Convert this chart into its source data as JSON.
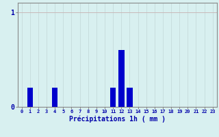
{
  "hours": [
    0,
    1,
    2,
    3,
    4,
    5,
    6,
    7,
    8,
    9,
    10,
    11,
    12,
    13,
    14,
    15,
    16,
    17,
    18,
    19,
    20,
    21,
    22,
    23
  ],
  "values": [
    0,
    0.2,
    0,
    0,
    0.2,
    0,
    0,
    0,
    0,
    0,
    0,
    0.2,
    0.6,
    0.2,
    0,
    0,
    0,
    0,
    0,
    0,
    0,
    0,
    0,
    0
  ],
  "bar_color": "#0000cc",
  "bg_color": "#d8f0f0",
  "grid_color_v": "#c8dede",
  "grid_color_h": "#c8b8b8",
  "axis_color": "#0000aa",
  "tick_color": "#0000aa",
  "xlabel": "Précipitations 1h ( mm )",
  "ylim": [
    0,
    1.1
  ],
  "yticks": [
    0,
    1
  ],
  "xlim": [
    -0.5,
    23.5
  ]
}
